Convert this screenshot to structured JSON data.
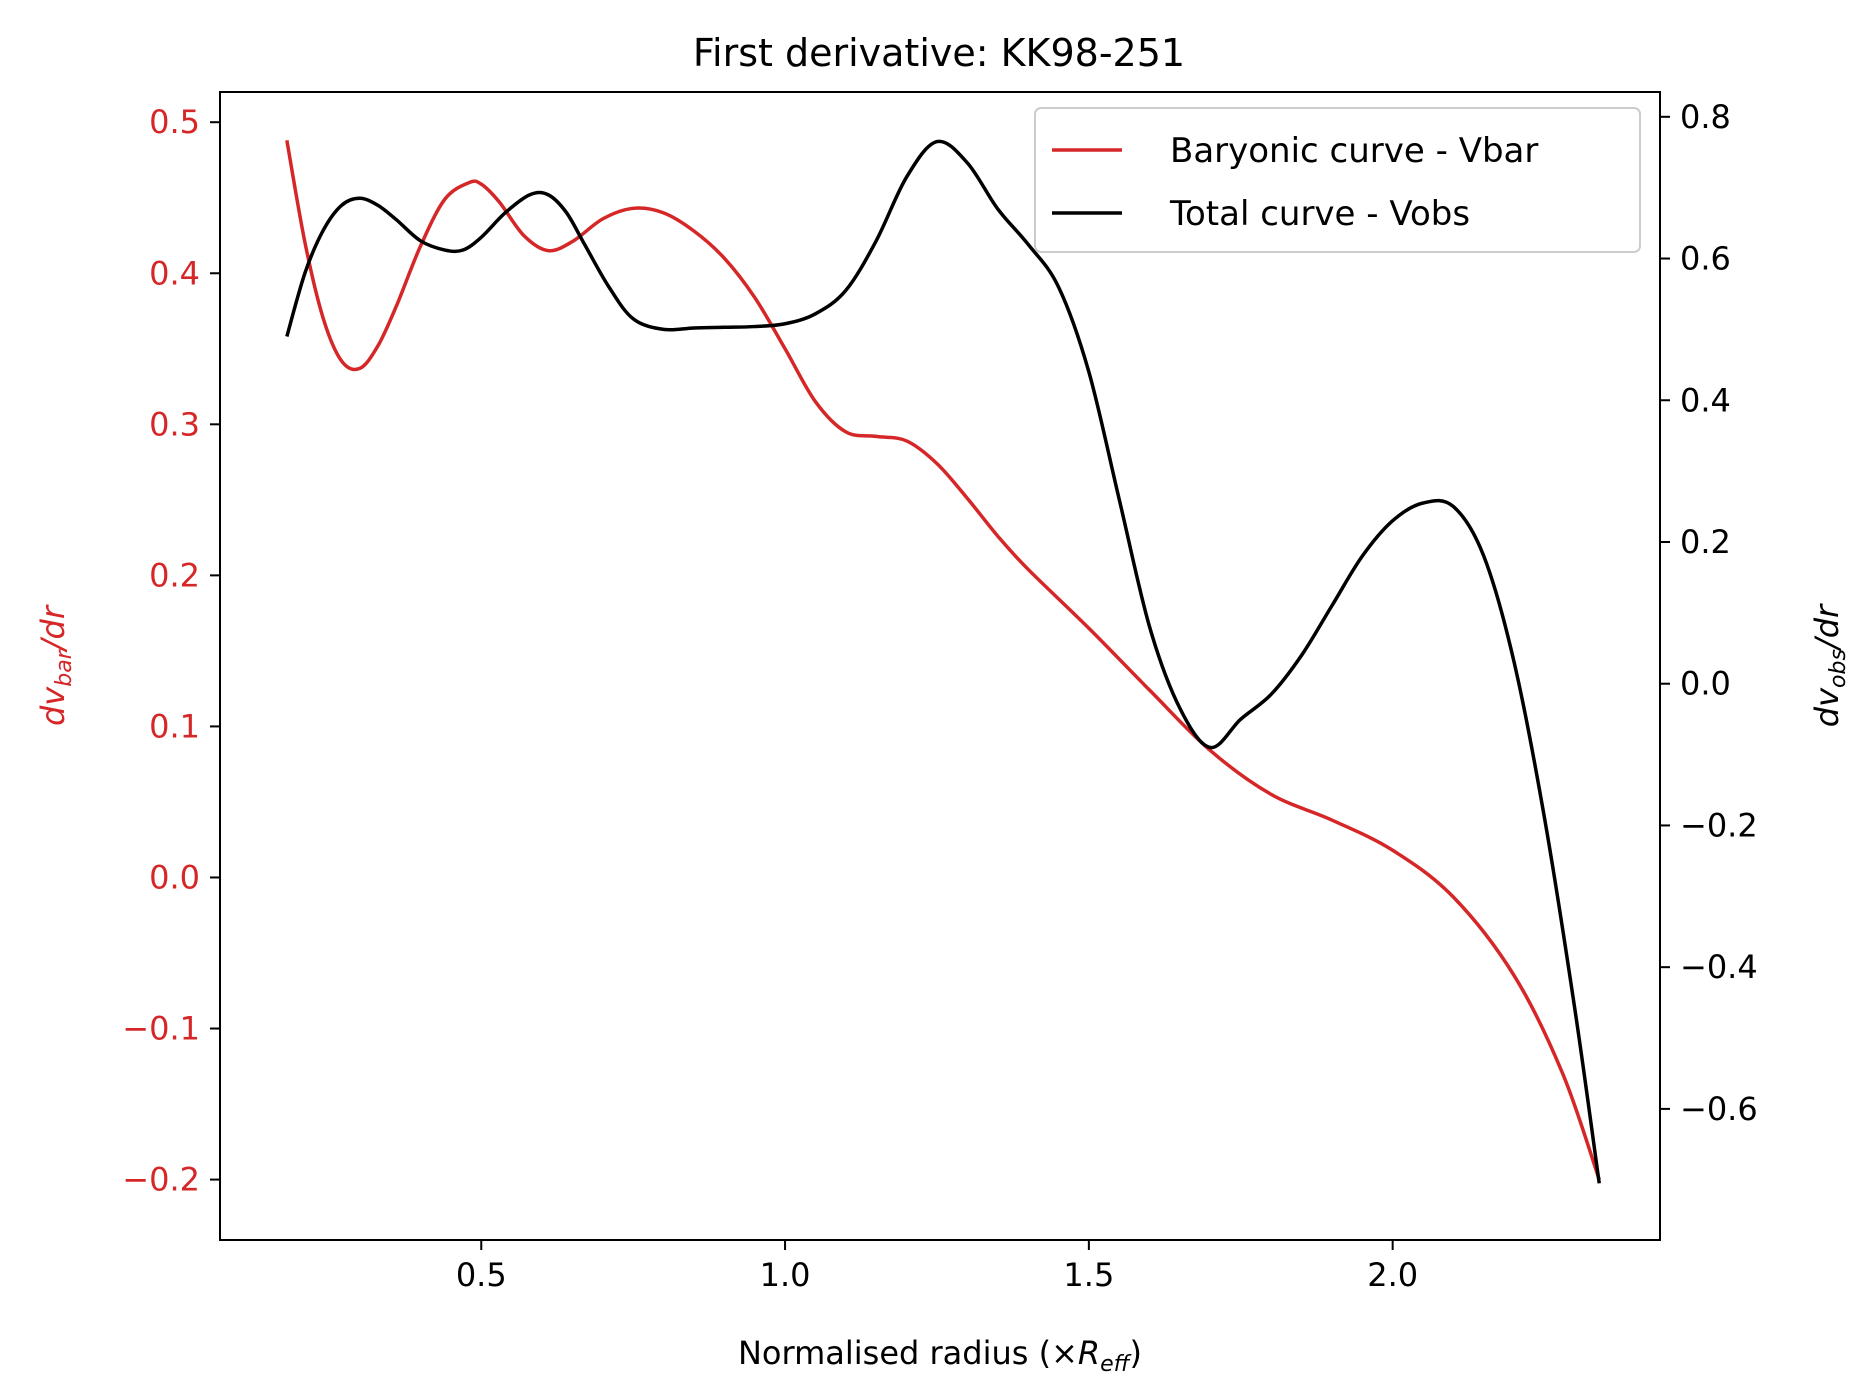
{
  "chart_data": {
    "type": "line",
    "title": "First derivative: KK98-251",
    "xlabel": {
      "main": "Normalised radius (×",
      "sym": "R",
      "sub": "eff",
      "close": ")"
    },
    "ylabel_left": {
      "pre": "dv",
      "sub": "bar",
      "post": "/dr"
    },
    "ylabel_right": {
      "pre": "dv",
      "sub": "obs",
      "post": "/dr"
    },
    "xlim": [
      0.07,
      2.44
    ],
    "ylim_left": [
      -0.24,
      0.52
    ],
    "ylim_right": [
      -0.785,
      0.835
    ],
    "x_ticks": [
      0.5,
      1.0,
      1.5,
      2.0
    ],
    "x_tick_labels": [
      "0.5",
      "1.0",
      "1.5",
      "2.0"
    ],
    "y_left_ticks": [
      -0.2,
      -0.1,
      0.0,
      0.1,
      0.2,
      0.3,
      0.4,
      0.5
    ],
    "y_left_tick_labels": [
      "−0.2",
      "−0.1",
      "0.0",
      "0.1",
      "0.2",
      "0.3",
      "0.4",
      "0.5"
    ],
    "y_right_ticks": [
      -0.6,
      -0.4,
      -0.2,
      0.0,
      0.2,
      0.4,
      0.6,
      0.8
    ],
    "y_right_tick_labels": [
      "−0.6",
      "−0.4",
      "−0.2",
      "0.0",
      "0.2",
      "0.4",
      "0.6",
      "0.8"
    ],
    "grid": false,
    "legend_position": "top-right",
    "colors": {
      "left_axis": "#d62728",
      "bar_series": "#d62728",
      "obs_series": "#000000"
    },
    "series": [
      {
        "name": "Baryonic curve - Vbar",
        "axis": "left",
        "x": [
          0.18,
          0.21,
          0.24,
          0.27,
          0.3,
          0.33,
          0.36,
          0.4,
          0.44,
          0.48,
          0.5,
          0.53,
          0.57,
          0.61,
          0.65,
          0.7,
          0.75,
          0.8,
          0.85,
          0.9,
          0.95,
          1.0,
          1.05,
          1.1,
          1.15,
          1.2,
          1.25,
          1.3,
          1.35,
          1.4,
          1.5,
          1.6,
          1.7,
          1.8,
          1.9,
          2.0,
          2.1,
          2.2,
          2.28,
          2.34
        ],
        "y": [
          0.488,
          0.42,
          0.37,
          0.342,
          0.337,
          0.352,
          0.378,
          0.418,
          0.449,
          0.46,
          0.459,
          0.447,
          0.425,
          0.415,
          0.421,
          0.436,
          0.443,
          0.44,
          0.428,
          0.41,
          0.384,
          0.35,
          0.315,
          0.295,
          0.292,
          0.289,
          0.274,
          0.251,
          0.226,
          0.204,
          0.165,
          0.124,
          0.084,
          0.055,
          0.038,
          0.018,
          -0.013,
          -0.065,
          -0.13,
          -0.2
        ]
      },
      {
        "name": "Total curve - Vobs",
        "axis": "right",
        "x": [
          0.18,
          0.21,
          0.24,
          0.27,
          0.3,
          0.33,
          0.36,
          0.4,
          0.44,
          0.47,
          0.5,
          0.54,
          0.58,
          0.61,
          0.64,
          0.67,
          0.71,
          0.75,
          0.8,
          0.85,
          0.9,
          0.95,
          1.0,
          1.05,
          1.1,
          1.15,
          1.2,
          1.25,
          1.3,
          1.35,
          1.4,
          1.45,
          1.5,
          1.55,
          1.6,
          1.65,
          1.7,
          1.75,
          1.8,
          1.85,
          1.9,
          1.95,
          2.0,
          2.05,
          2.1,
          2.15,
          2.2,
          2.25,
          2.3,
          2.34
        ],
        "y": [
          0.49,
          0.58,
          0.64,
          0.675,
          0.685,
          0.675,
          0.655,
          0.625,
          0.612,
          0.612,
          0.63,
          0.665,
          0.69,
          0.69,
          0.665,
          0.62,
          0.56,
          0.515,
          0.5,
          0.502,
          0.503,
          0.504,
          0.508,
          0.522,
          0.555,
          0.625,
          0.715,
          0.765,
          0.735,
          0.67,
          0.62,
          0.56,
          0.44,
          0.26,
          0.08,
          -0.035,
          -0.09,
          -0.05,
          -0.015,
          0.04,
          0.11,
          0.18,
          0.23,
          0.255,
          0.25,
          0.18,
          0.03,
          -0.19,
          -0.46,
          -0.705
        ]
      }
    ]
  }
}
